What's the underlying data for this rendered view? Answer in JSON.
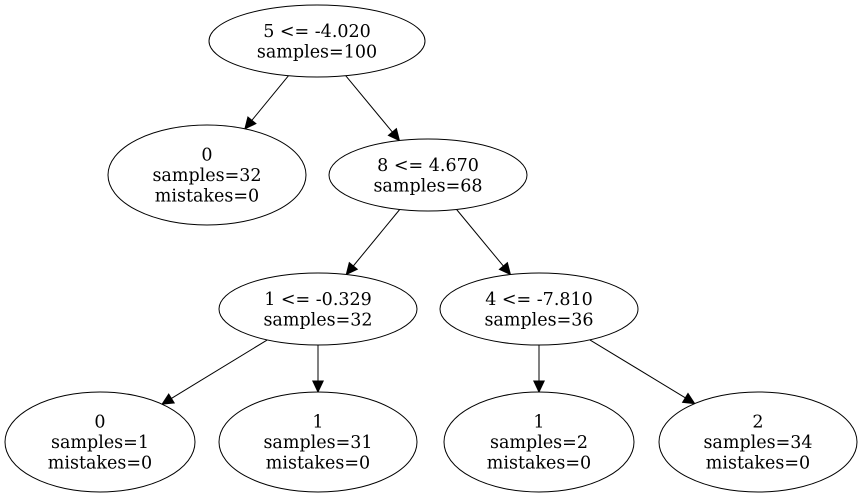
{
  "nodes": [
    {
      "id": "n0",
      "lines": [
        "5 <= -4.020",
        "samples=100"
      ]
    },
    {
      "id": "n1",
      "lines": [
        "0",
        "samples=32",
        "mistakes=0"
      ]
    },
    {
      "id": "n2",
      "lines": [
        "8 <= 4.670",
        "samples=68"
      ]
    },
    {
      "id": "n3",
      "lines": [
        "1 <= -0.329",
        "samples=32"
      ]
    },
    {
      "id": "n4",
      "lines": [
        "4 <= -7.810",
        "samples=36"
      ]
    },
    {
      "id": "n5",
      "lines": [
        "0",
        "samples=1",
        "mistakes=0"
      ]
    },
    {
      "id": "n6",
      "lines": [
        "1",
        "samples=31",
        "mistakes=0"
      ]
    },
    {
      "id": "n7",
      "lines": [
        "1",
        "samples=2",
        "mistakes=0"
      ]
    },
    {
      "id": "n8",
      "lines": [
        "2",
        "samples=34",
        "mistakes=0"
      ]
    }
  ],
  "edges": [
    {
      "from": "n0",
      "to": "n1"
    },
    {
      "from": "n0",
      "to": "n2"
    },
    {
      "from": "n2",
      "to": "n3"
    },
    {
      "from": "n2",
      "to": "n4"
    },
    {
      "from": "n3",
      "to": "n5"
    },
    {
      "from": "n3",
      "to": "n6"
    },
    {
      "from": "n4",
      "to": "n7"
    },
    {
      "from": "n4",
      "to": "n8"
    }
  ]
}
